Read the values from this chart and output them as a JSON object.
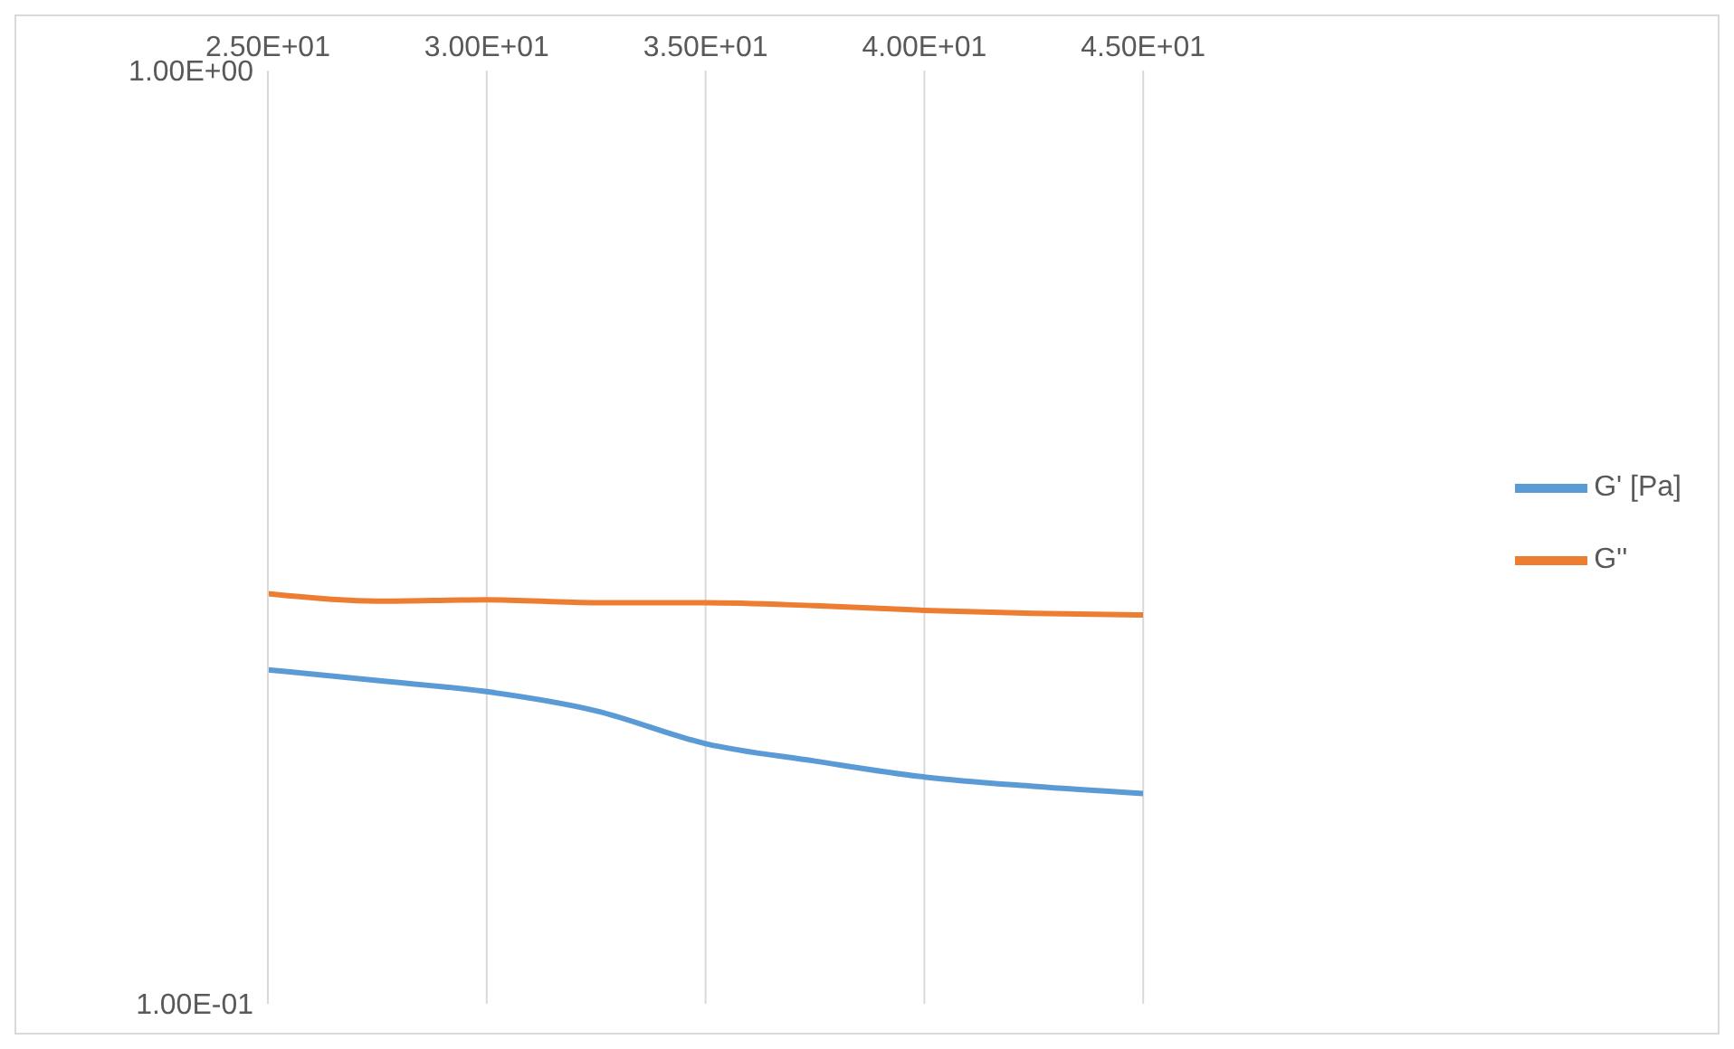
{
  "chart_data": {
    "type": "line",
    "x": [
      25,
      27.5,
      30,
      32.5,
      35,
      37.5,
      40,
      42.5,
      45
    ],
    "series": [
      {
        "name": "G' [Pa]",
        "color": "#5b9bd5",
        "values": [
          0.228,
          0.222,
          0.216,
          0.206,
          0.19,
          0.182,
          0.175,
          0.171,
          0.168
        ]
      },
      {
        "name": "G''",
        "color": "#ed7d31",
        "values": [
          0.275,
          0.27,
          0.271,
          0.269,
          0.269,
          0.267,
          0.264,
          0.262,
          0.261
        ]
      }
    ],
    "xlim": [
      25,
      45
    ],
    "xticks": [
      {
        "value": 25,
        "label": "2.50E+01"
      },
      {
        "value": 30,
        "label": "3.00E+01"
      },
      {
        "value": 35,
        "label": "3.50E+01"
      },
      {
        "value": 40,
        "label": "4.00E+01"
      },
      {
        "value": 45,
        "label": "4.50E+01"
      }
    ],
    "ylim": [
      0.1,
      1
    ],
    "yticks": [
      {
        "value": 0.1,
        "label": "1.00E-01"
      },
      {
        "value": 1,
        "label": "1.00E+00"
      }
    ],
    "log": "y",
    "grid": "x",
    "legend": "right",
    "marker": "none",
    "line_style": "solid"
  }
}
